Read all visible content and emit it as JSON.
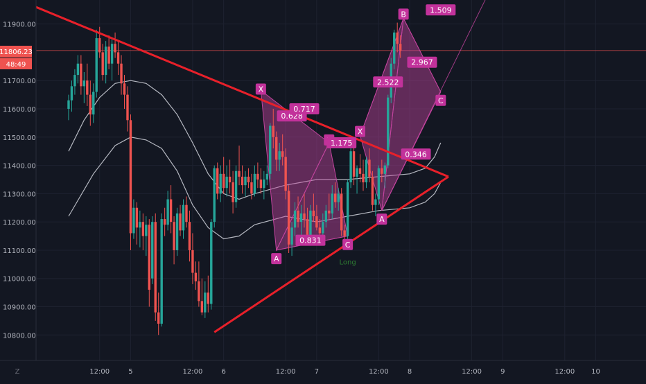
{
  "colors": {
    "background": "#131722",
    "grid": "#1e2230",
    "axis_text": "#b2b5be",
    "up_candle": "#26a69a",
    "down_candle": "#ef5350",
    "trendline": "#e8202a",
    "pattern_fill": "#c2449e",
    "label_bg": "#c2329b",
    "ma_line": "#d1d4dc",
    "price_tag_bg": "#ef5350"
  },
  "axis": {
    "corner_label": "Z",
    "price_tag": "11806.23",
    "countdown_tag": "48:49"
  },
  "chart_data": {
    "type": "candlestick",
    "title": "",
    "xlabel": "",
    "ylabel": "",
    "ylim": [
      10710,
      11985
    ],
    "xlim": [
      -10.5,
      186.2
    ],
    "price_ticks": [
      "10800.00",
      "10900.00",
      "11000.00",
      "11100.00",
      "11200.00",
      "11300.00",
      "11400.00",
      "11500.00",
      "11600.00",
      "11700.00",
      "11900.00"
    ],
    "time_ticks": [
      {
        "label": "12:00",
        "x": 10
      },
      {
        "label": "5",
        "x": 20
      },
      {
        "label": "12:00",
        "x": 40
      },
      {
        "label": "6",
        "x": 50
      },
      {
        "label": "12:00",
        "x": 70
      },
      {
        "label": "7",
        "x": 80
      },
      {
        "label": "12:00",
        "x": 100
      },
      {
        "label": "8",
        "x": 110
      },
      {
        "label": "12:00",
        "x": 130
      },
      {
        "label": "9",
        "x": 140
      },
      {
        "label": "12:00",
        "x": 160
      },
      {
        "label": "10",
        "x": 170
      }
    ],
    "last_price": 11806.23,
    "candles": [
      [
        11600,
        11650,
        11560,
        11630
      ],
      [
        11630,
        11700,
        11590,
        11680
      ],
      [
        11680,
        11740,
        11650,
        11720
      ],
      [
        11720,
        11790,
        11690,
        11760
      ],
      [
        11760,
        11790,
        11650,
        11680
      ],
      [
        11680,
        11730,
        11620,
        11700
      ],
      [
        11700,
        11760,
        11610,
        11650
      ],
      [
        11650,
        11700,
        11540,
        11580
      ],
      [
        11580,
        11690,
        11550,
        11660
      ],
      [
        11660,
        11880,
        11640,
        11850
      ],
      [
        11850,
        11890,
        11780,
        11800
      ],
      [
        11800,
        11830,
        11700,
        11720
      ],
      [
        11720,
        11840,
        11690,
        11820
      ],
      [
        11820,
        11860,
        11740,
        11760
      ],
      [
        11760,
        11850,
        11700,
        11830
      ],
      [
        11830,
        11870,
        11780,
        11800
      ],
      [
        11800,
        11840,
        11720,
        11760
      ],
      [
        11760,
        11790,
        11650,
        11690
      ],
      [
        11690,
        11720,
        11600,
        11650
      ],
      [
        11650,
        11680,
        11520,
        11560
      ],
      [
        11560,
        11580,
        11100,
        11160
      ],
      [
        11160,
        11280,
        11140,
        11250
      ],
      [
        11250,
        11270,
        11120,
        11180
      ],
      [
        11180,
        11240,
        11110,
        11200
      ],
      [
        11200,
        11230,
        11100,
        11150
      ],
      [
        11150,
        11220,
        11080,
        11190
      ],
      [
        11190,
        11210,
        10900,
        10960
      ],
      [
        11000,
        11220,
        10980,
        11200
      ],
      [
        11200,
        11230,
        10850,
        10880
      ],
      [
        10880,
        10950,
        10800,
        10840
      ],
      [
        10840,
        11230,
        10830,
        11210
      ],
      [
        11210,
        11250,
        11150,
        11190
      ],
      [
        11190,
        11310,
        11170,
        11280
      ],
      [
        11280,
        11330,
        11160,
        11200
      ],
      [
        11200,
        11220,
        11050,
        11100
      ],
      [
        11100,
        11250,
        11080,
        11230
      ],
      [
        11230,
        11260,
        11150,
        11170
      ],
      [
        11170,
        11280,
        11140,
        11260
      ],
      [
        11260,
        11290,
        11180,
        11200
      ],
      [
        11200,
        11240,
        11060,
        11100
      ],
      [
        11100,
        11160,
        10980,
        11020
      ],
      [
        11020,
        11060,
        10960,
        10990
      ],
      [
        10990,
        11060,
        10900,
        10920
      ],
      [
        10920,
        11000,
        10870,
        10880
      ],
      [
        10880,
        10990,
        10860,
        10950
      ],
      [
        10950,
        11010,
        10880,
        10910
      ],
      [
        10910,
        11210,
        10890,
        11200
      ],
      [
        11200,
        11400,
        11180,
        11390
      ],
      [
        11390,
        11410,
        11280,
        11300
      ],
      [
        11300,
        11400,
        11270,
        11370
      ],
      [
        11370,
        11430,
        11300,
        11320
      ],
      [
        11320,
        11400,
        11290,
        11360
      ],
      [
        11360,
        11420,
        11300,
        11340
      ],
      [
        11340,
        11380,
        11230,
        11270
      ],
      [
        11270,
        11400,
        11250,
        11380
      ],
      [
        11380,
        11470,
        11330,
        11360
      ],
      [
        11360,
        11400,
        11300,
        11330
      ],
      [
        11330,
        11380,
        11290,
        11360
      ],
      [
        11360,
        11390,
        11320,
        11340
      ],
      [
        11340,
        11370,
        11280,
        11300
      ],
      [
        11300,
        11400,
        11290,
        11370
      ],
      [
        11370,
        11410,
        11320,
        11350
      ],
      [
        11350,
        11390,
        11300,
        11320
      ],
      [
        11320,
        11380,
        11280,
        11350
      ],
      [
        11350,
        11400,
        11330,
        11370
      ],
      [
        11370,
        11550,
        11350,
        11540
      ],
      [
        11540,
        11600,
        11460,
        11500
      ],
      [
        11500,
        11520,
        11380,
        11420
      ],
      [
        11420,
        11480,
        11380,
        11450
      ],
      [
        11450,
        11510,
        11400,
        11430
      ],
      [
        11430,
        11460,
        11280,
        11310
      ],
      [
        11310,
        11330,
        11090,
        11120
      ],
      [
        11120,
        11200,
        11080,
        11180
      ],
      [
        11180,
        11270,
        11150,
        11240
      ],
      [
        11240,
        11290,
        11180,
        11200
      ],
      [
        11200,
        11260,
        11150,
        11230
      ],
      [
        11230,
        11300,
        11180,
        11210
      ],
      [
        11210,
        11250,
        11120,
        11150
      ],
      [
        11150,
        11260,
        11130,
        11240
      ],
      [
        11240,
        11300,
        11200,
        11220
      ],
      [
        11220,
        11260,
        11170,
        11180
      ],
      [
        11180,
        11210,
        11130,
        11160
      ],
      [
        11160,
        11230,
        11140,
        11200
      ],
      [
        11200,
        11260,
        11180,
        11240
      ],
      [
        11240,
        11300,
        11210,
        11230
      ],
      [
        11230,
        11330,
        11210,
        11300
      ],
      [
        11300,
        11340,
        11250,
        11270
      ],
      [
        11270,
        11320,
        11240,
        11300
      ],
      [
        11300,
        11320,
        11150,
        11170
      ],
      [
        11170,
        11190,
        11130,
        11150
      ],
      [
        11150,
        11350,
        11140,
        11340
      ],
      [
        11340,
        11460,
        11320,
        11450
      ],
      [
        11450,
        11500,
        11330,
        11360
      ],
      [
        11360,
        11400,
        11300,
        11390
      ],
      [
        11390,
        11440,
        11340,
        11370
      ],
      [
        11370,
        11420,
        11310,
        11340
      ],
      [
        11340,
        11430,
        11320,
        11420
      ],
      [
        11420,
        11460,
        11340,
        11360
      ],
      [
        11360,
        11380,
        11240,
        11260
      ],
      [
        11260,
        11300,
        11220,
        11280
      ],
      [
        11280,
        11400,
        11260,
        11390
      ],
      [
        11390,
        11420,
        11340,
        11370
      ],
      [
        11370,
        11410,
        11320,
        11400
      ],
      [
        11400,
        11650,
        11390,
        11640
      ],
      [
        11640,
        11780,
        11620,
        11760
      ],
      [
        11760,
        11880,
        11740,
        11870
      ],
      [
        11870,
        11905,
        11800,
        11830
      ],
      [
        11830,
        11860,
        11780,
        11806
      ]
    ],
    "moving_averages": [
      {
        "points": [
          [
            0,
            11220
          ],
          [
            8,
            11370
          ],
          [
            15,
            11470
          ],
          [
            20,
            11500
          ],
          [
            25,
            11490
          ],
          [
            30,
            11460
          ],
          [
            35,
            11380
          ],
          [
            40,
            11260
          ],
          [
            45,
            11180
          ],
          [
            50,
            11140
          ],
          [
            55,
            11150
          ],
          [
            60,
            11190
          ],
          [
            70,
            11220
          ],
          [
            80,
            11200
          ],
          [
            90,
            11220
          ],
          [
            100,
            11240
          ],
          [
            110,
            11250
          ],
          [
            115,
            11270
          ],
          [
            118,
            11300
          ],
          [
            120,
            11340
          ]
        ]
      },
      {
        "points": [
          [
            0,
            11450
          ],
          [
            5,
            11560
          ],
          [
            10,
            11640
          ],
          [
            15,
            11690
          ],
          [
            20,
            11700
          ],
          [
            25,
            11690
          ],
          [
            30,
            11650
          ],
          [
            35,
            11580
          ],
          [
            40,
            11480
          ],
          [
            45,
            11370
          ],
          [
            50,
            11300
          ],
          [
            55,
            11280
          ],
          [
            60,
            11300
          ],
          [
            70,
            11330
          ],
          [
            80,
            11350
          ],
          [
            90,
            11350
          ],
          [
            100,
            11360
          ],
          [
            110,
            11370
          ],
          [
            115,
            11390
          ],
          [
            118,
            11430
          ],
          [
            120,
            11480
          ]
        ]
      }
    ],
    "trendlines": [
      {
        "from": [
          -10.5,
          11960
        ],
        "to": [
          122.5,
          11360
        ]
      },
      {
        "from": [
          47,
          10810
        ],
        "to": [
          122.5,
          11360
        ]
      }
    ],
    "triangle_tip": [
      122.5,
      11360
    ],
    "patterns": [
      {
        "polygon": [
          [
            62,
            11665
          ],
          [
            67,
            11100
          ],
          [
            84,
            11480
          ]
        ]
      },
      {
        "polygon": [
          [
            67,
            11100
          ],
          [
            84,
            11480
          ],
          [
            90,
            11150
          ]
        ]
      },
      {
        "polygon": [
          [
            94,
            11505
          ],
          [
            101,
            11240
          ],
          [
            108,
            11920
          ]
        ]
      },
      {
        "polygon": [
          [
            101,
            11240
          ],
          [
            108,
            11920
          ],
          [
            120,
            11660
          ]
        ]
      }
    ],
    "pattern_lines": [
      {
        "from": [
          67,
          11100
        ],
        "to": [
          90,
          11150
        ]
      },
      {
        "from": [
          101,
          11240
        ],
        "to": [
          120,
          11660
        ]
      },
      {
        "from": [
          94,
          11505
        ],
        "to": [
          108,
          11920
        ]
      },
      {
        "from": [
          108,
          11920
        ],
        "to": [
          120,
          11660
        ]
      },
      {
        "from": [
          101,
          11240
        ],
        "to": [
          135,
          12000
        ]
      }
    ],
    "point_labels": [
      {
        "text": "X",
        "x": 62,
        "y": 11670
      },
      {
        "text": "A",
        "x": 67,
        "y": 11070
      },
      {
        "text": "B",
        "x": 84,
        "y": 11490
      },
      {
        "text": "C",
        "x": 90,
        "y": 11120
      },
      {
        "text": "X",
        "x": 94,
        "y": 11520
      },
      {
        "text": "A",
        "x": 101,
        "y": 11210
      },
      {
        "text": "B",
        "x": 108,
        "y": 11935
      },
      {
        "text": "C",
        "x": 120,
        "y": 11630
      }
    ],
    "ratio_labels": [
      {
        "text": "0.628",
        "x": 72,
        "y": 11575
      },
      {
        "text": "0.717",
        "x": 76,
        "y": 11600
      },
      {
        "text": "1.175",
        "x": 88,
        "y": 11480
      },
      {
        "text": "0.831",
        "x": 78,
        "y": 11135
      },
      {
        "text": "2.522",
        "x": 103,
        "y": 11695
      },
      {
        "text": "2.967",
        "x": 114,
        "y": 11765
      },
      {
        "text": "0.346",
        "x": 112,
        "y": 11440
      },
      {
        "text": "1.509",
        "x": 120,
        "y": 11950
      }
    ],
    "annotations": [
      {
        "text": "Long",
        "x": 90,
        "y": 11050
      }
    ]
  }
}
